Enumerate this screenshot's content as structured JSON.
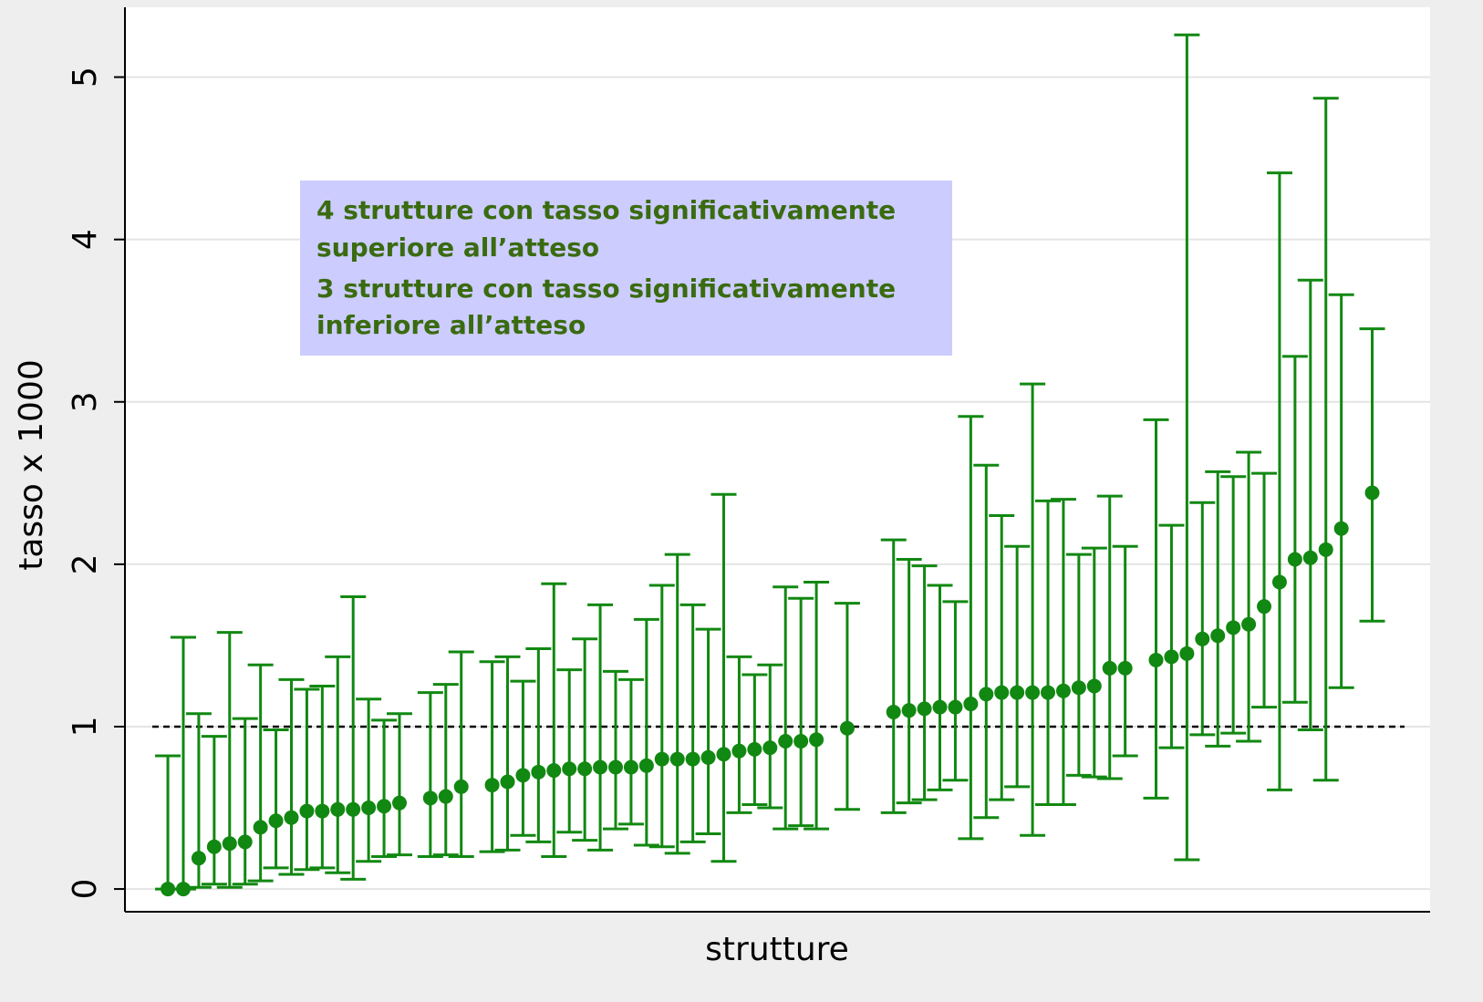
{
  "chart_data": {
    "type": "scatter",
    "xlabel": "strutture",
    "ylabel": "tasso x 1000",
    "annotation": [
      "4 strutture con tasso significativamente",
      "superiore all’atteso",
      "3 strutture con tasso significativamente",
      "inferiore all’atteso"
    ],
    "reference_line": 1,
    "color": "#118811",
    "annotation_color": "#3a6b10",
    "annotation_background": "#ccccff",
    "grid": true,
    "xlim": [
      -1.78,
      82.75
    ],
    "ylim": [
      -0.14,
      5.43
    ],
    "yticks": [
      0,
      1,
      2,
      3,
      4,
      5
    ],
    "x": [
      1,
      2,
      3,
      4,
      5,
      6,
      7,
      8,
      9,
      10,
      11,
      12,
      13,
      14,
      15,
      16,
      18,
      19,
      20,
      22,
      23,
      24,
      25,
      26,
      27,
      28,
      29,
      30,
      31,
      32,
      33,
      34,
      35,
      36,
      37,
      38,
      39,
      40,
      41,
      42,
      43,
      45,
      48,
      49,
      50,
      51,
      52,
      53,
      54,
      55,
      56,
      57,
      58,
      59,
      60,
      61,
      62,
      63,
      65,
      66,
      67,
      68,
      69,
      70,
      71,
      72,
      73,
      74,
      75,
      76,
      77,
      79
    ],
    "values": [
      0.0,
      0.0,
      0.19,
      0.26,
      0.28,
      0.29,
      0.38,
      0.42,
      0.44,
      0.48,
      0.48,
      0.49,
      0.49,
      0.5,
      0.51,
      0.53,
      0.56,
      0.57,
      0.63,
      0.64,
      0.66,
      0.7,
      0.72,
      0.73,
      0.74,
      0.74,
      0.75,
      0.75,
      0.75,
      0.76,
      0.8,
      0.8,
      0.8,
      0.81,
      0.83,
      0.85,
      0.86,
      0.87,
      0.91,
      0.91,
      0.92,
      0.99,
      1.09,
      1.1,
      1.11,
      1.12,
      1.12,
      1.14,
      1.2,
      1.21,
      1.21,
      1.21,
      1.21,
      1.22,
      1.24,
      1.25,
      1.36,
      1.36,
      1.41,
      1.43,
      1.45,
      1.54,
      1.56,
      1.61,
      1.63,
      1.74,
      1.89,
      2.03,
      2.04,
      2.09,
      2.22,
      2.44
    ],
    "lower": [
      0,
      0,
      0.01,
      0.03,
      0.01,
      0.03,
      0.05,
      0.13,
      0.09,
      0.12,
      0.13,
      0.1,
      0.06,
      0.17,
      0.2,
      0.21,
      0.2,
      0.21,
      0.2,
      0.23,
      0.24,
      0.33,
      0.29,
      0.2,
      0.35,
      0.3,
      0.24,
      0.37,
      0.4,
      0.27,
      0.26,
      0.22,
      0.29,
      0.34,
      0.17,
      0.47,
      0.52,
      0.5,
      0.37,
      0.39,
      0.37,
      0.49,
      0.47,
      0.53,
      0.55,
      0.61,
      0.67,
      0.31,
      0.44,
      0.55,
      0.63,
      0.33,
      0.52,
      0.52,
      0.7,
      0.69,
      0.68,
      0.82,
      0.56,
      0.87,
      0.18,
      0.95,
      0.88,
      0.96,
      0.91,
      1.12,
      0.61,
      1.15,
      0.98,
      0.67,
      1.24,
      1.65
    ],
    "upper": [
      0.82,
      1.55,
      1.08,
      0.94,
      1.58,
      1.05,
      1.38,
      0.98,
      1.29,
      1.23,
      1.25,
      1.43,
      1.8,
      1.17,
      1.04,
      1.08,
      1.21,
      1.26,
      1.46,
      1.4,
      1.43,
      1.28,
      1.48,
      1.88,
      1.35,
      1.54,
      1.75,
      1.34,
      1.29,
      1.66,
      1.87,
      2.06,
      1.75,
      1.6,
      2.43,
      1.43,
      1.32,
      1.38,
      1.86,
      1.79,
      1.89,
      1.76,
      2.15,
      2.03,
      1.99,
      1.87,
      1.77,
      2.91,
      2.61,
      2.3,
      2.11,
      3.11,
      2.39,
      2.4,
      2.06,
      2.1,
      2.42,
      2.11,
      2.89,
      2.24,
      5.26,
      2.38,
      2.57,
      2.54,
      2.69,
      2.56,
      4.41,
      3.28,
      3.75,
      4.87,
      3.66,
      3.45
    ]
  }
}
